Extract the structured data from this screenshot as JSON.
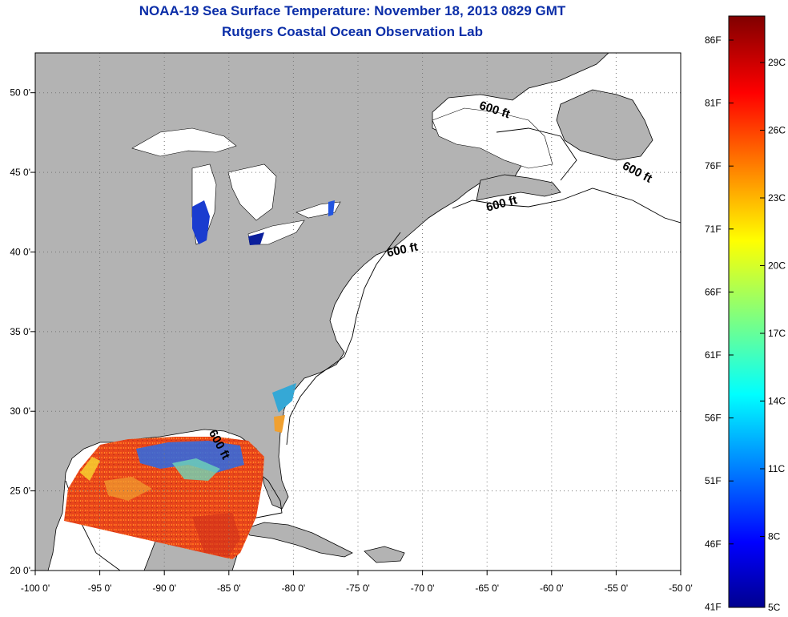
{
  "titles": {
    "line1": "NOAA-19 Sea Surface Temperature:  November 18, 2013 0829 GMT",
    "line2": "Rutgers Coastal Ocean Observation Lab"
  },
  "map": {
    "lon_range": [
      -100,
      -50
    ],
    "lat_range": [
      20,
      52.5
    ],
    "x_ticks": [
      {
        "lon": -100,
        "label": "-100 0'"
      },
      {
        "lon": -95,
        "label": "-95 0'"
      },
      {
        "lon": -90,
        "label": "-90 0'"
      },
      {
        "lon": -85,
        "label": "-85 0'"
      },
      {
        "lon": -80,
        "label": "-80 0'"
      },
      {
        "lon": -75,
        "label": "-75 0'"
      },
      {
        "lon": -70,
        "label": "-70 0'"
      },
      {
        "lon": -65,
        "label": "-65 0'"
      },
      {
        "lon": -60,
        "label": "-60 0'"
      },
      {
        "lon": -55,
        "label": "-55 0'"
      },
      {
        "lon": -50,
        "label": "-50 0'"
      }
    ],
    "y_ticks": [
      {
        "lat": 20,
        "label": "20 0'"
      },
      {
        "lat": 25,
        "label": "25 0'"
      },
      {
        "lat": 30,
        "label": "30 0'"
      },
      {
        "lat": 35,
        "label": "35 0'"
      },
      {
        "lat": 40,
        "label": "40 0'"
      },
      {
        "lat": 45,
        "label": "45 0'"
      },
      {
        "lat": 50,
        "label": "50 0'"
      }
    ],
    "isobath_labels": [
      {
        "text": "600 ft",
        "lon": -64.5,
        "lat": 48.7,
        "rotate": 18
      },
      {
        "text": "600 ft",
        "lon": -53.5,
        "lat": 44.8,
        "rotate": 28
      },
      {
        "text": "600 ft",
        "lon": -63.8,
        "lat": 42.8,
        "rotate": -15
      },
      {
        "text": "600 ft",
        "lon": -71.5,
        "lat": 39.9,
        "rotate": -12
      },
      {
        "text": "600 ft",
        "lon": -86,
        "lat": 27.8,
        "rotate": 62
      }
    ],
    "colors": {
      "land": "#b3b3b3",
      "ocean": "#ffffff",
      "coast": "#000000"
    }
  },
  "colorbar": {
    "fahrenheit": [
      "86F",
      "81F",
      "76F",
      "71F",
      "66F",
      "61F",
      "56F",
      "51F",
      "46F",
      "41F"
    ],
    "celsius": [
      "29C",
      "26C",
      "23C",
      "20C",
      "17C",
      "14C",
      "11C",
      "8C",
      "5C"
    ]
  }
}
